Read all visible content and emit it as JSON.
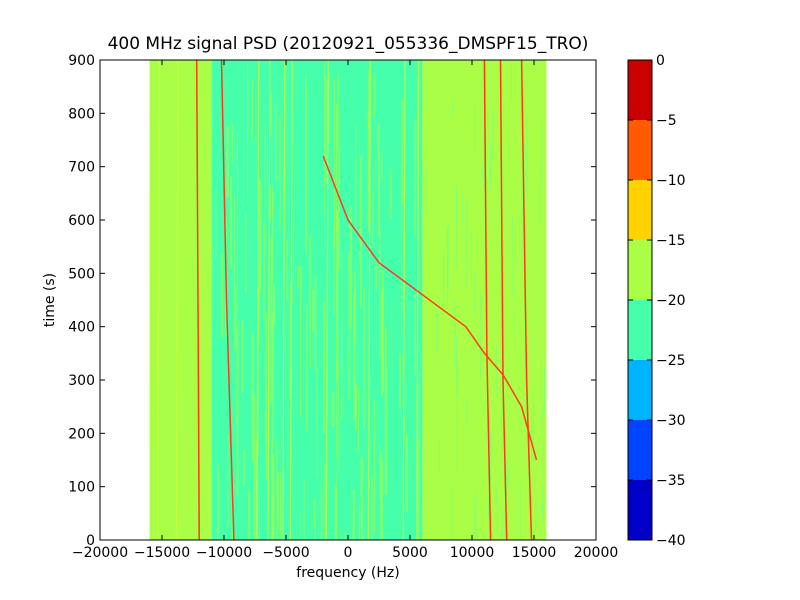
{
  "chart_data": {
    "type": "heatmap",
    "title": "400 MHz signal PSD (20120921_055336_DMSPF15_TRO)",
    "xlabel": "frequency (Hz)",
    "ylabel": "time (s)",
    "xlim": [
      -20000,
      20000
    ],
    "ylim": [
      0,
      900
    ],
    "x_ticks": [
      -20000,
      -15000,
      -10000,
      -5000,
      0,
      5000,
      10000,
      15000,
      20000
    ],
    "x_tick_labels": [
      "−20000",
      "−15000",
      "−10000",
      "−5000",
      "0",
      "5000",
      "10000",
      "15000",
      "20000"
    ],
    "y_ticks": [
      0,
      100,
      200,
      300,
      400,
      500,
      600,
      700,
      800,
      900
    ],
    "y_tick_labels": [
      "0",
      "100",
      "200",
      "300",
      "400",
      "500",
      "600",
      "700",
      "800",
      "900"
    ],
    "data_extent_x": [
      -16000,
      16000
    ],
    "colorbar": {
      "levels": [
        -40,
        -35,
        -30,
        -25,
        -20,
        -15,
        -10,
        -5,
        0
      ],
      "tick_labels": [
        "−40",
        "−35",
        "−30",
        "−25",
        "−20",
        "−15",
        "−10",
        "−5",
        "0"
      ],
      "colors": [
        "#0000c8",
        "#0044ff",
        "#00b4ff",
        "#46ffaa",
        "#aaff46",
        "#ffd200",
        "#ff5a00",
        "#c80000"
      ]
    },
    "background_levels": [
      {
        "x_range": [
          -16000,
          -11000
        ],
        "band_db": [
          -20,
          -15
        ]
      },
      {
        "x_range": [
          -11000,
          6000
        ],
        "band_db": [
          -25,
          -20
        ]
      },
      {
        "x_range": [
          6000,
          16000
        ],
        "band_db": [
          -20,
          -15
        ]
      }
    ],
    "signal_traces": [
      {
        "points": [
          [
            -12000,
            0
          ],
          [
            -12100,
            450
          ],
          [
            -12200,
            900
          ]
        ]
      },
      {
        "points": [
          [
            -9200,
            0
          ],
          [
            -9800,
            450
          ],
          [
            -10200,
            900
          ]
        ]
      },
      {
        "points": [
          [
            11500,
            0
          ],
          [
            11200,
            350
          ],
          [
            11000,
            900
          ]
        ]
      },
      {
        "points": [
          [
            12800,
            0
          ],
          [
            12500,
            300
          ],
          [
            12300,
            900
          ]
        ]
      },
      {
        "points": [
          [
            14800,
            0
          ],
          [
            14400,
            300
          ],
          [
            14000,
            900
          ]
        ]
      },
      {
        "points": [
          [
            -2000,
            720
          ],
          [
            0,
            600
          ],
          [
            2500,
            520
          ],
          [
            6000,
            460
          ],
          [
            9500,
            400
          ],
          [
            11000,
            350
          ],
          [
            12500,
            310
          ],
          [
            14000,
            250
          ],
          [
            15200,
            150
          ]
        ]
      }
    ]
  }
}
